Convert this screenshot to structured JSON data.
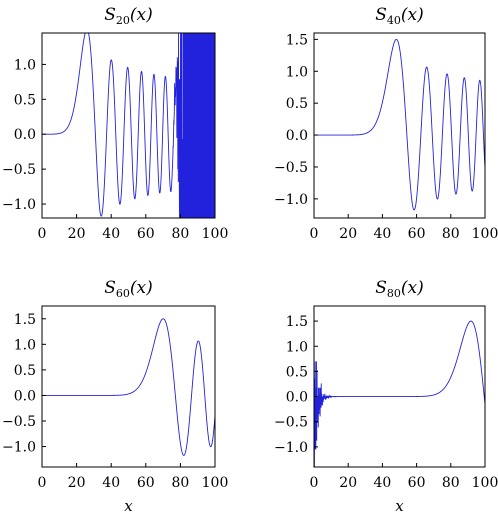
{
  "chart_data": [
    {
      "type": "line",
      "title": {
        "base": "S",
        "sub": "20",
        "arg": "(x)"
      },
      "xlabel": "",
      "xlim": [
        0,
        100
      ],
      "ylim": [
        -1.2,
        1.45
      ],
      "xticks": [
        "0",
        "20",
        "40",
        "60",
        "80",
        "100"
      ],
      "xtick_values": [
        0,
        20,
        40,
        60,
        80,
        100
      ],
      "yticks": [
        "−1.0",
        "−0.5",
        "0.0",
        "0.5",
        "1.0"
      ],
      "ytick_values": [
        -1.0,
        -0.5,
        0.0,
        0.5,
        1.0
      ],
      "series": [
        {
          "color": "#2222dd",
          "n": 20
        }
      ],
      "grid": false
    },
    {
      "type": "line",
      "title": {
        "base": "S",
        "sub": "40",
        "arg": "(x)"
      },
      "xlabel": "",
      "xlim": [
        0,
        100
      ],
      "ylim": [
        -1.3,
        1.6
      ],
      "xticks": [
        "0",
        "20",
        "40",
        "60",
        "80",
        "100"
      ],
      "xtick_values": [
        0,
        20,
        40,
        60,
        80,
        100
      ],
      "yticks": [
        "−1.0",
        "−0.5",
        "0.0",
        "0.5",
        "1.0",
        "1.5"
      ],
      "ytick_values": [
        -1.0,
        -0.5,
        0.0,
        0.5,
        1.0,
        1.5
      ],
      "series": [
        {
          "color": "#2222dd",
          "n": 40
        }
      ],
      "grid": false
    },
    {
      "type": "line",
      "title": {
        "base": "S",
        "sub": "60",
        "arg": "(x)"
      },
      "xlabel": "x",
      "xlim": [
        0,
        100
      ],
      "ylim": [
        -1.4,
        1.75
      ],
      "xticks": [
        "0",
        "20",
        "40",
        "60",
        "80",
        "100"
      ],
      "xtick_values": [
        0,
        20,
        40,
        60,
        80,
        100
      ],
      "yticks": [
        "−1.0",
        "−0.5",
        "0.0",
        "0.5",
        "1.0",
        "1.5"
      ],
      "ytick_values": [
        -1.0,
        -0.5,
        0.0,
        0.5,
        1.0,
        1.5
      ],
      "series": [
        {
          "color": "#2222dd",
          "n": 60
        }
      ],
      "grid": false
    },
    {
      "type": "line",
      "title": {
        "base": "S",
        "sub": "80",
        "arg": "(x)"
      },
      "xlabel": "x",
      "xlim": [
        0,
        100
      ],
      "ylim": [
        -1.4,
        1.8
      ],
      "xticks": [
        "0",
        "20",
        "40",
        "60",
        "80",
        "100"
      ],
      "xtick_values": [
        0,
        20,
        40,
        60,
        80,
        100
      ],
      "yticks": [
        "−1.0",
        "−0.5",
        "0.0",
        "0.5",
        "1.0",
        "1.5"
      ],
      "ytick_values": [
        -1.0,
        -0.5,
        0.0,
        0.5,
        1.0,
        1.5
      ],
      "series": [
        {
          "color": "#2222dd",
          "n": 80
        }
      ],
      "grid": false
    }
  ]
}
